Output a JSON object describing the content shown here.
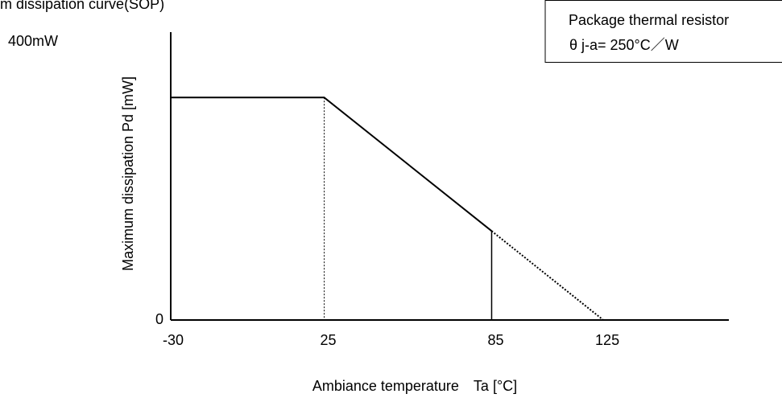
{
  "chart_data": {
    "type": "line",
    "title": "m dissipation curve(SOP)",
    "annotation": [
      "Package thermal resistor",
      "θ j-a= 250°C／W"
    ],
    "xlabel": "Ambiance temperature　Ta [°C]",
    "ylabel": "Maximum dissipation Pd [mW]",
    "series": [
      {
        "color": "#000000",
        "style": "solid",
        "x": [
          -30,
          25,
          85
        ],
        "values": [
          320,
          320,
          128
        ]
      },
      {
        "color": "#000000",
        "style": "dotted",
        "x": [
          85,
          125
        ],
        "values": [
          128,
          0
        ]
      }
    ],
    "xlim": [
      -30,
      170
    ],
    "xticks": [
      -30,
      25,
      85,
      125
    ],
    "ylim": [
      0,
      414
    ],
    "yticks": [
      0,
      {
        "value": 400,
        "label": "400mW"
      }
    ],
    "grid": false
  }
}
